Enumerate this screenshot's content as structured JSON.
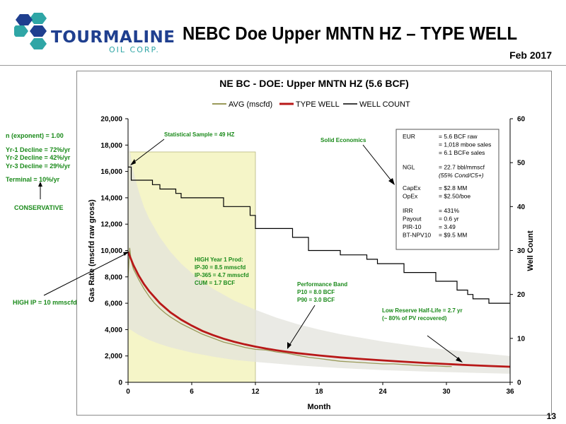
{
  "header": {
    "company_name": "TOURMALINE",
    "company_sub": "OIL CORP.",
    "slide_title": "NEBC Doe Upper MNTN HZ – TYPE WELL",
    "date": "Feb 2017",
    "page_number": "13"
  },
  "left_notes": {
    "exponent": "n (exponent)  =  1.00",
    "decline1": "Yr-1 Decline  =  72%/yr",
    "decline2": "Yr-2 Decline  =  42%/yr",
    "decline3": "Yr-3 Decline  =  29%/yr",
    "terminal": "Terminal       =  10%/yr",
    "conservative": "CONSERVATIVE",
    "high_ip": "HIGH IP = 10 mmscfd"
  },
  "annotations": {
    "stat_sample": "Statistical Sample = 49 HZ",
    "solid_econ": "Solid Economics",
    "high_year1": [
      "HIGH Year 1 Prod:",
      "IP-30   =  8.5 mmscfd",
      "IP-365 =  4.7 mmscfd",
      "CUM    =  1.7 BCF"
    ],
    "perf_band": [
      "Performance Band",
      "P10  =  8.0 BCF",
      "P90  =  3.0 BCF"
    ],
    "half_life": [
      "Low Reserve Half-Life = 2.7 yr",
      "(~ 80% of PV recovered)"
    ]
  },
  "economics": [
    {
      "label": "EUR",
      "value": "= 5.6 BCF raw"
    },
    {
      "label": "",
      "value": "= 1,018 mboe sales"
    },
    {
      "label": "",
      "value": "= 6.1 BCFe sales"
    },
    {
      "label": "NGL",
      "value": "= 22.7 bbl/mmscf"
    },
    {
      "label": "",
      "value": "(55% Cond/C5+)"
    },
    {
      "label": "CapEx",
      "value": "= $2.8 MM"
    },
    {
      "label": "OpEx",
      "value": "= $2.50/boe"
    },
    {
      "label": "IRR",
      "value": "= 431%"
    },
    {
      "label": "Payout",
      "value": "= 0.6 yr"
    },
    {
      "label": "PIR-10",
      "value": "= 3.49"
    },
    {
      "label": "BT-NPV10",
      "value": "= $9.5 MM"
    }
  ],
  "colors": {
    "avg": "#9a9a5a",
    "type_well": "#b81818",
    "well_count": "#000000",
    "band": "#e3e3dc",
    "year1_fill": "#f5f5c8",
    "annotation": "#1a8a1a",
    "brand_blue": "#1f3f8f",
    "brand_teal": "#2fa6a6"
  },
  "chart_data": {
    "type": "line",
    "title": "NE BC - DOE: Upper MNTN HZ (5.6 BCF)",
    "xlabel": "Month",
    "ylabel": "Gas Rate (mscfd raw gross)",
    "y2label": "Well Count",
    "xlim": [
      0,
      36
    ],
    "ylim": [
      0,
      20000
    ],
    "y2lim": [
      0,
      60
    ],
    "xticks": [
      0,
      6,
      12,
      18,
      24,
      30,
      36
    ],
    "yticks": [
      0,
      2000,
      4000,
      6000,
      8000,
      10000,
      12000,
      14000,
      16000,
      18000,
      20000
    ],
    "yticklabels": [
      "0",
      "2,000",
      "4,000",
      "6,000",
      "8,000",
      "10,000",
      "12,000",
      "14,000",
      "16,000",
      "18,000",
      "20,000"
    ],
    "y2ticks": [
      0,
      10,
      20,
      30,
      40,
      50,
      60
    ],
    "legend_position": "top",
    "highlight_range_x": [
      0,
      12
    ],
    "series": [
      {
        "name": "AVG (mscfd)",
        "axis": "left",
        "x": [
          0,
          0.15,
          0.3,
          0.5,
          0.75,
          1,
          1.5,
          2,
          2.5,
          3,
          3.5,
          4,
          5,
          6,
          7,
          8,
          9,
          10,
          11,
          12,
          13,
          14,
          15,
          16,
          17,
          18,
          19,
          20,
          21,
          22,
          23,
          24,
          25,
          26,
          27,
          28,
          29,
          30,
          30.5
        ],
        "values": [
          8000,
          10200,
          9200,
          8600,
          8200,
          7800,
          7100,
          6500,
          6000,
          5600,
          5250,
          4950,
          4450,
          4050,
          3650,
          3350,
          3050,
          2850,
          2650,
          2500,
          2450,
          2300,
          2200,
          2050,
          1900,
          1800,
          1700,
          1600,
          1550,
          1500,
          1450,
          1400,
          1400,
          1350,
          1300,
          1250,
          1250,
          1200,
          1200
        ]
      },
      {
        "name": "TYPE WELL",
        "axis": "left",
        "x": [
          0,
          0.5,
          1,
          1.5,
          2,
          3,
          4,
          5,
          6,
          7,
          8,
          9,
          10,
          11,
          12,
          13,
          14,
          15,
          16,
          18,
          20,
          22,
          24,
          26,
          28,
          30,
          32,
          34,
          36
        ],
        "values": [
          9900,
          8900,
          8100,
          7450,
          6900,
          6000,
          5300,
          4750,
          4300,
          3900,
          3580,
          3310,
          3080,
          2880,
          2710,
          2560,
          2430,
          2310,
          2210,
          2040,
          1890,
          1770,
          1660,
          1560,
          1470,
          1390,
          1310,
          1240,
          1180
        ]
      },
      {
        "name": "WELL COUNT",
        "axis": "right",
        "x": [
          0,
          0.3,
          1.5,
          2.3,
          3,
          4.5,
          5,
          8.5,
          9,
          11.5,
          12,
          14.5,
          15.5,
          16.5,
          17,
          19.5,
          20,
          21.5,
          22.5,
          23.5,
          25.5,
          26,
          28.5,
          29,
          31,
          32,
          32.5,
          34,
          34.5,
          36
        ],
        "values": [
          49,
          46,
          46,
          45,
          44,
          43,
          42,
          42,
          40,
          38,
          35,
          35,
          33,
          33,
          30,
          30,
          29,
          29,
          28,
          27,
          27,
          25,
          25,
          23,
          21,
          20,
          19,
          18,
          18,
          18
        ]
      },
      {
        "name": "P10",
        "axis": "left",
        "x": [
          0,
          0.5,
          1,
          1.5,
          2,
          3,
          4,
          5,
          6,
          8,
          10,
          12,
          14,
          16,
          18,
          20,
          24,
          28,
          32,
          36
        ],
        "values": [
          18500,
          16000,
          14500,
          13300,
          12400,
          11000,
          9900,
          9000,
          8300,
          7100,
          6200,
          5500,
          4900,
          4400,
          4000,
          3650,
          3100,
          2650,
          2300,
          2000
        ]
      },
      {
        "name": "P90",
        "axis": "left",
        "x": [
          0,
          1,
          2,
          3,
          4,
          6,
          8,
          10,
          12,
          16,
          20,
          24,
          28,
          32,
          36
        ],
        "values": [
          4100,
          3600,
          3200,
          2900,
          2650,
          2250,
          1950,
          1700,
          1550,
          1280,
          1080,
          930,
          820,
          730,
          650
        ]
      }
    ]
  }
}
